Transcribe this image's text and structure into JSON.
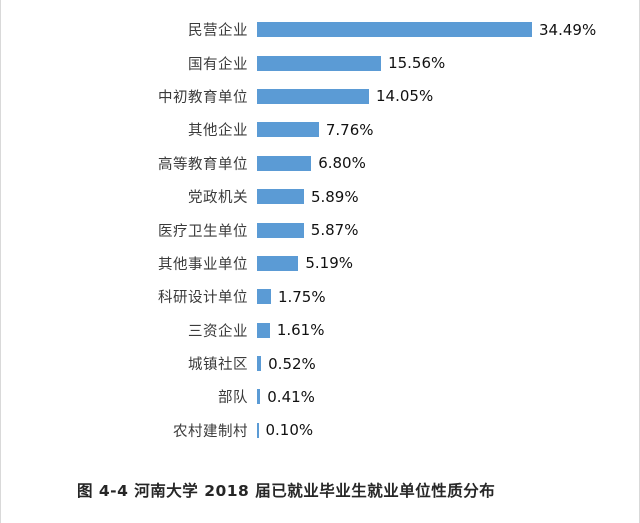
{
  "chart_data": {
    "type": "bar",
    "orientation": "horizontal",
    "title": "",
    "xlabel": "",
    "ylabel": "",
    "xlim": [
      0,
      36
    ],
    "grid": false,
    "legend": "none",
    "bar_color": "#5b9bd5",
    "categories": [
      "民营企业",
      "国有企业",
      "中初教育单位",
      "其他企业",
      "高等教育单位",
      "党政机关",
      "医疗卫生单位",
      "其他事业单位",
      "科研设计单位",
      "三资企业",
      "城镇社区",
      "部队",
      "农村建制村"
    ],
    "values": [
      34.49,
      15.56,
      14.05,
      7.76,
      6.8,
      5.89,
      5.87,
      5.19,
      1.75,
      1.61,
      0.52,
      0.41,
      0.1
    ],
    "value_labels": [
      "34.49%",
      "15.56%",
      "14.05%",
      "7.76%",
      "6.80%",
      "5.89%",
      "5.87%",
      "5.19%",
      "1.75%",
      "1.61%",
      "0.52%",
      "0.41%",
      "0.10%"
    ]
  },
  "caption": "图 4-4 河南大学 2018 届已就业毕业生就业单位性质分布"
}
